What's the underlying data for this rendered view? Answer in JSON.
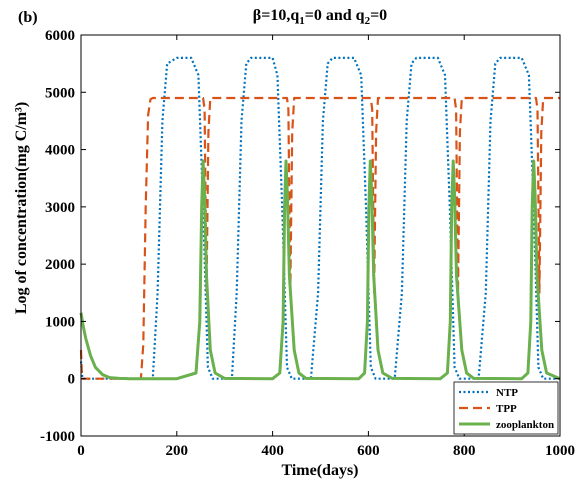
{
  "chart_data": {
    "type": "line",
    "panel_label": "(b)",
    "title": {
      "main": "β=10,q",
      "sub1": "1",
      "mid": "=0 and q",
      "sub2": "2",
      "end": "=0"
    },
    "xlabel": "Time(days)",
    "ylabel": "Log of concentration(mg C/m³)",
    "xlim": [
      0,
      1000
    ],
    "ylim": [
      -1000,
      6000
    ],
    "xticks": [
      0,
      200,
      400,
      600,
      800,
      1000
    ],
    "yticks": [
      -1000,
      0,
      1000,
      2000,
      3000,
      4000,
      5000,
      6000
    ],
    "grid": false,
    "legend_position": "bottom-right",
    "series": [
      {
        "name": "NTP",
        "color": "#0072BD",
        "style": "dotted",
        "x": [
          0,
          3,
          6,
          100,
          150,
          160,
          170,
          180,
          200,
          230,
          245,
          255,
          265,
          275,
          285,
          300,
          315,
          325,
          335,
          345,
          355,
          370,
          400,
          410,
          420,
          430,
          440,
          460,
          480,
          495,
          505,
          515,
          525,
          540,
          570,
          585,
          595,
          605,
          615,
          630,
          655,
          670,
          680,
          690,
          700,
          715,
          745,
          760,
          770,
          780,
          790,
          810,
          830,
          845,
          855,
          865,
          875,
          890,
          920,
          935,
          945,
          955,
          965,
          1000
        ],
        "values": [
          300,
          0,
          0,
          0,
          0,
          1500,
          4500,
          5500,
          5600,
          5600,
          5300,
          3000,
          200,
          0,
          0,
          0,
          0,
          1500,
          4500,
          5500,
          5600,
          5600,
          5600,
          5300,
          3000,
          200,
          0,
          0,
          0,
          1500,
          4500,
          5500,
          5600,
          5600,
          5600,
          5300,
          3000,
          200,
          0,
          0,
          0,
          1500,
          4500,
          5500,
          5600,
          5600,
          5600,
          5300,
          3000,
          200,
          0,
          0,
          0,
          1500,
          4500,
          5500,
          5600,
          5600,
          5600,
          5300,
          3000,
          200,
          0,
          0
        ]
      },
      {
        "name": "TPP",
        "color": "#D95319",
        "style": "dashed",
        "x": [
          0,
          2,
          5,
          125,
          130,
          135,
          140,
          145,
          150,
          255,
          258,
          262,
          266,
          270,
          430,
          433,
          437,
          441,
          445,
          605,
          608,
          612,
          616,
          620,
          780,
          783,
          787,
          791,
          795,
          950,
          953,
          957,
          961,
          965,
          1000
        ],
        "values": [
          500,
          0,
          0,
          0,
          600,
          3000,
          4600,
          4880,
          4900,
          4900,
          4700,
          1500,
          4300,
          4900,
          4900,
          4700,
          1500,
          4300,
          4900,
          4900,
          4700,
          1500,
          4300,
          4900,
          4900,
          4700,
          1500,
          4300,
          4900,
          4900,
          4700,
          1500,
          4300,
          4900,
          4900
        ]
      },
      {
        "name": "zooplankton",
        "color": "#6AB04C",
        "style": "solid",
        "x": [
          0,
          5,
          10,
          20,
          30,
          45,
          60,
          80,
          100,
          200,
          240,
          248,
          252,
          255,
          258,
          262,
          270,
          280,
          300,
          400,
          415,
          422,
          425,
          428,
          431,
          435,
          445,
          455,
          470,
          580,
          592,
          598,
          601,
          604,
          607,
          611,
          620,
          630,
          650,
          750,
          765,
          771,
          774,
          777,
          780,
          784,
          795,
          805,
          820,
          920,
          933,
          939,
          942,
          945,
          948,
          952,
          962,
          972,
          1000
        ],
        "values": [
          1150,
          900,
          700,
          400,
          200,
          70,
          20,
          5,
          0,
          0,
          100,
          1000,
          3000,
          3800,
          3200,
          1800,
          500,
          100,
          5,
          0,
          100,
          1000,
          3000,
          3800,
          3200,
          1800,
          500,
          100,
          5,
          0,
          100,
          1000,
          3000,
          3800,
          3200,
          1800,
          500,
          100,
          5,
          0,
          100,
          1000,
          3000,
          3800,
          3200,
          1800,
          500,
          100,
          5,
          0,
          100,
          1000,
          3000,
          3800,
          3200,
          1800,
          500,
          100,
          0
        ]
      }
    ]
  }
}
